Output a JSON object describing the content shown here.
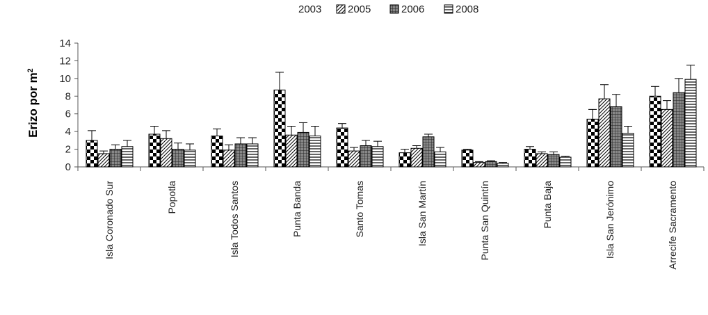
{
  "chart_data": {
    "type": "bar",
    "title": "",
    "xlabel": "",
    "ylabel": "Erizo por m",
    "ylabel_superscript": "2",
    "ylim": [
      0,
      14
    ],
    "yticks": [
      0,
      2,
      4,
      6,
      8,
      10,
      12,
      14
    ],
    "legend_position": "top",
    "categories": [
      "Isla Coronado Sur",
      "Popotla",
      "Isla Todos Santos",
      "Punta Banda",
      "Santo Tomas",
      "Isla San Martín",
      "Punta San Quintín",
      "Punta Baja",
      "Isla San Jerónimo",
      "Arrecife Sacramento"
    ],
    "series": [
      {
        "name": "2003",
        "pattern": "checker",
        "values": [
          3.0,
          3.7,
          3.5,
          8.7,
          4.4,
          1.6,
          1.9,
          2.0,
          5.4,
          8.0
        ],
        "errors": [
          1.1,
          0.9,
          0.8,
          2.0,
          0.5,
          0.4,
          0.1,
          0.3,
          1.1,
          1.1
        ]
      },
      {
        "name": "2005",
        "pattern": "diagonal",
        "values": [
          1.5,
          3.2,
          1.9,
          3.6,
          1.8,
          2.1,
          0.5,
          1.5,
          7.7,
          6.5
        ],
        "errors": [
          0.3,
          0.9,
          0.6,
          1.0,
          0.4,
          0.3,
          0.1,
          0.2,
          1.6,
          1.0
        ]
      },
      {
        "name": "2006",
        "pattern": "grid",
        "values": [
          2.0,
          2.0,
          2.6,
          3.9,
          2.4,
          3.4,
          0.6,
          1.4,
          6.8,
          8.4
        ],
        "errors": [
          0.5,
          0.7,
          0.7,
          1.1,
          0.6,
          0.3,
          0.1,
          0.3,
          1.4,
          1.6
        ]
      },
      {
        "name": "2008",
        "pattern": "horizontal",
        "values": [
          2.3,
          1.9,
          2.6,
          3.5,
          2.3,
          1.7,
          0.4,
          1.1,
          3.8,
          9.9
        ],
        "errors": [
          0.7,
          0.7,
          0.7,
          1.1,
          0.6,
          0.5,
          0.1,
          0.1,
          0.8,
          1.6
        ]
      }
    ]
  }
}
